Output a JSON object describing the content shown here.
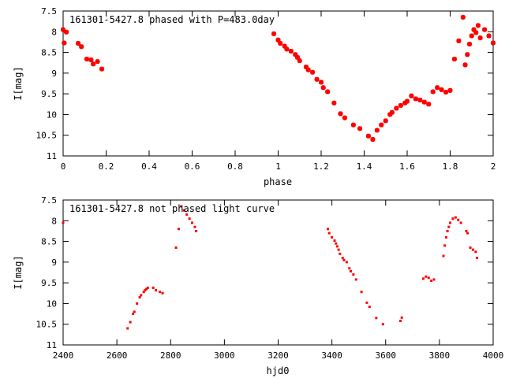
{
  "chart_data": [
    {
      "type": "scatter",
      "title": "161301-5427.8 phased with P=483.0day",
      "xlabel": "phase",
      "ylabel": "I[mag]",
      "xlim": [
        0,
        2
      ],
      "ylim": [
        7.5,
        11
      ],
      "y_inverted": true,
      "grid": false,
      "marker_color": "#ff0000",
      "x_ticks": [
        "0",
        "0.2",
        "0.4",
        "0.6",
        "0.8",
        "1",
        "1.2",
        "1.4",
        "1.6",
        "1.8",
        "2"
      ],
      "y_ticks": [
        "7.5",
        "8",
        "8.5",
        "9",
        "9.5",
        "10",
        "10.5",
        "11"
      ],
      "points": [
        [
          0.0,
          7.95
        ],
        [
          0.005,
          8.27
        ],
        [
          0.015,
          8.01
        ],
        [
          0.07,
          8.28
        ],
        [
          0.085,
          8.36
        ],
        [
          0.11,
          8.66
        ],
        [
          0.13,
          8.68
        ],
        [
          0.14,
          8.78
        ],
        [
          0.16,
          8.72
        ],
        [
          0.18,
          8.9
        ],
        [
          0.98,
          8.05
        ],
        [
          1.0,
          8.2
        ],
        [
          1.01,
          8.28
        ],
        [
          1.03,
          8.35
        ],
        [
          1.04,
          8.42
        ],
        [
          1.06,
          8.47
        ],
        [
          1.08,
          8.55
        ],
        [
          1.09,
          8.62
        ],
        [
          1.1,
          8.7
        ],
        [
          1.13,
          8.85
        ],
        [
          1.14,
          8.92
        ],
        [
          1.16,
          8.98
        ],
        [
          1.18,
          9.15
        ],
        [
          1.2,
          9.22
        ],
        [
          1.21,
          9.35
        ],
        [
          1.23,
          9.45
        ],
        [
          1.26,
          9.72
        ],
        [
          1.29,
          9.98
        ],
        [
          1.31,
          10.08
        ],
        [
          1.35,
          10.25
        ],
        [
          1.38,
          10.34
        ],
        [
          1.42,
          10.52
        ],
        [
          1.44,
          10.6
        ],
        [
          1.46,
          10.38
        ],
        [
          1.48,
          10.25
        ],
        [
          1.5,
          10.15
        ],
        [
          1.52,
          10.0
        ],
        [
          1.53,
          9.95
        ],
        [
          1.55,
          9.85
        ],
        [
          1.57,
          9.78
        ],
        [
          1.59,
          9.72
        ],
        [
          1.6,
          9.68
        ],
        [
          1.62,
          9.55
        ],
        [
          1.64,
          9.62
        ],
        [
          1.66,
          9.65
        ],
        [
          1.68,
          9.7
        ],
        [
          1.7,
          9.75
        ],
        [
          1.72,
          9.45
        ],
        [
          1.74,
          9.35
        ],
        [
          1.76,
          9.4
        ],
        [
          1.78,
          9.46
        ],
        [
          1.8,
          9.42
        ],
        [
          1.82,
          8.66
        ],
        [
          1.84,
          8.22
        ],
        [
          1.86,
          7.65
        ],
        [
          1.87,
          8.8
        ],
        [
          1.88,
          8.55
        ],
        [
          1.89,
          8.3
        ],
        [
          1.9,
          8.1
        ],
        [
          1.91,
          7.95
        ],
        [
          1.92,
          8.02
        ],
        [
          1.93,
          7.85
        ],
        [
          1.94,
          8.15
        ],
        [
          1.96,
          7.95
        ],
        [
          1.98,
          8.1
        ],
        [
          2.0,
          8.27
        ]
      ]
    },
    {
      "type": "scatter",
      "title": "161301-5427.8 not phased light curve",
      "xlabel": "hjd0",
      "ylabel": "I[mag]",
      "xlim": [
        2400,
        4000
      ],
      "ylim": [
        7.5,
        11
      ],
      "y_inverted": true,
      "grid": false,
      "marker_color": "#ff0000",
      "x_ticks": [
        "2400",
        "2600",
        "2800",
        "3000",
        "3200",
        "3400",
        "3600",
        "3800",
        "4000"
      ],
      "y_ticks": [
        "7.5",
        "8",
        "8.5",
        "9",
        "9.5",
        "10",
        "10.5",
        "11"
      ],
      "points": [
        [
          2400,
          8.05
        ],
        [
          2640,
          10.6
        ],
        [
          2650,
          10.45
        ],
        [
          2660,
          10.25
        ],
        [
          2665,
          10.2
        ],
        [
          2675,
          10.0
        ],
        [
          2685,
          9.85
        ],
        [
          2690,
          9.8
        ],
        [
          2700,
          9.72
        ],
        [
          2705,
          9.68
        ],
        [
          2710,
          9.65
        ],
        [
          2715,
          9.62
        ],
        [
          2735,
          9.62
        ],
        [
          2745,
          9.68
        ],
        [
          2760,
          9.72
        ],
        [
          2770,
          9.75
        ],
        [
          2820,
          8.65
        ],
        [
          2830,
          8.2
        ],
        [
          2840,
          7.65
        ],
        [
          2850,
          7.75
        ],
        [
          2860,
          7.85
        ],
        [
          2870,
          7.95
        ],
        [
          2880,
          8.05
        ],
        [
          2890,
          8.15
        ],
        [
          2895,
          8.25
        ],
        [
          3385,
          8.2
        ],
        [
          3390,
          8.3
        ],
        [
          3400,
          8.4
        ],
        [
          3410,
          8.48
        ],
        [
          3415,
          8.55
        ],
        [
          3420,
          8.62
        ],
        [
          3425,
          8.7
        ],
        [
          3430,
          8.8
        ],
        [
          3440,
          8.9
        ],
        [
          3445,
          8.95
        ],
        [
          3455,
          9.0
        ],
        [
          3465,
          9.15
        ],
        [
          3470,
          9.22
        ],
        [
          3480,
          9.3
        ],
        [
          3490,
          9.42
        ],
        [
          3510,
          9.72
        ],
        [
          3530,
          9.98
        ],
        [
          3540,
          10.08
        ],
        [
          3565,
          10.35
        ],
        [
          3590,
          10.5
        ],
        [
          3655,
          10.42
        ],
        [
          3660,
          10.34
        ],
        [
          3740,
          9.4
        ],
        [
          3750,
          9.35
        ],
        [
          3760,
          9.38
        ],
        [
          3770,
          9.45
        ],
        [
          3780,
          9.42
        ],
        [
          3815,
          8.85
        ],
        [
          3820,
          8.6
        ],
        [
          3825,
          8.4
        ],
        [
          3830,
          8.25
        ],
        [
          3835,
          8.15
        ],
        [
          3840,
          8.05
        ],
        [
          3850,
          7.95
        ],
        [
          3860,
          7.92
        ],
        [
          3870,
          7.98
        ],
        [
          3880,
          8.05
        ],
        [
          3900,
          8.25
        ],
        [
          3905,
          8.3
        ],
        [
          3915,
          8.65
        ],
        [
          3925,
          8.7
        ],
        [
          3935,
          8.75
        ],
        [
          3940,
          8.9
        ]
      ]
    }
  ]
}
